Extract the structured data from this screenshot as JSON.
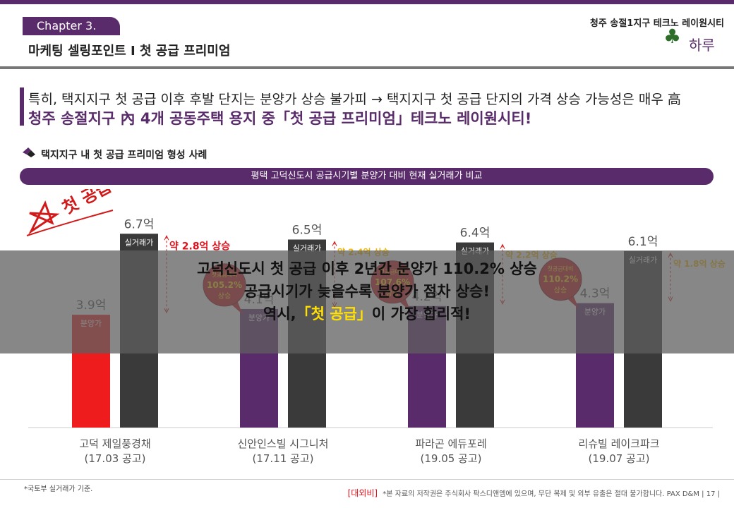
{
  "header": {
    "chapter": "Chapter 3.",
    "section_title": "마케팅 셀링포인트 I 첫 공급 프리미엄",
    "brand_line": "청주 송절1지구 테크노 레이원시티",
    "brand_logo_text": "하루"
  },
  "headline": {
    "line1": "특히, 택지지구 첫 공급 이후 후발 단지는 분양가 상승 불가피 → 택지지구 첫 공급 단지의 가격 상승 가능성은 매우 高",
    "line2": "청주 송절지구 內 4개 공동주택 용지 중「첫 공급 프리미엄」테크노 레이원시티!"
  },
  "subheading": "택지지구 내 첫 공급 프리미엄 형성 사례",
  "chart_title_bar": "평택 고덕신도시 공급시기별 분양가 대비 현재 실거래가 비교",
  "stamp_text": "첫 공급",
  "overlay": {
    "line1": "고덕신도시 첫 공급 이후 2년간 분양가 110.2% 상승",
    "line2": "공급시기가 늦을수록 분양가 점차 상승!",
    "line3_pre": "역시,",
    "line3_highlight": "「첫 공급」",
    "line3_post": "이 가장 합리적!"
  },
  "footnote": "*국토부 실거래가 기준.",
  "footer": {
    "external_tag": "[대외비]",
    "notice": "*본 자료의 저작권은 주식회사 팍스디앤엠에 있으며, 무단 복제 및 외부 유출은 절대 불가합니다.",
    "company": "PAX D&M",
    "page": "| 17 |"
  },
  "colors": {
    "brand_purple": "#5a2b6b",
    "sale_first": "#ee1c1c",
    "sale_other": "#5a2b6b",
    "actual": "#3a3a3a",
    "rise_first": "#e0101a",
    "rise_other": "#f5b800",
    "badge": "#c8101a"
  },
  "chart_data": {
    "type": "bar",
    "title": "평택 고덕신도시 공급시기별 분양가 대비 현재 실거래가 비교",
    "categories": [
      {
        "name": "고덕 제일풍경채",
        "date": "(17.03 공고)"
      },
      {
        "name": "신안인스빌 시그니처",
        "date": "(17.11 공고)"
      },
      {
        "name": "파라곤 에듀포레",
        "date": "(19.05 공고)"
      },
      {
        "name": "리슈빌 레이크파크",
        "date": "(19.07 공고)"
      }
    ],
    "series": [
      {
        "name": "분양가",
        "values": [
          3.9,
          4.1,
          4.2,
          4.3
        ],
        "labels": [
          "3.9억",
          "4.1억",
          "4.2억",
          "4.3억"
        ]
      },
      {
        "name": "실거래가",
        "values": [
          6.7,
          6.5,
          6.4,
          6.1
        ],
        "labels": [
          "6.7억",
          "6.5억",
          "6.4억",
          "6.1억"
        ]
      }
    ],
    "increase_labels": [
      "약 2.8억 상승",
      "약 2.4억 상승",
      "약 2.2억 상승",
      "약 1.8억 상승"
    ],
    "badges": [
      null,
      {
        "top": "첫공급대비",
        "value": "105.2%",
        "bottom": "상승"
      },
      {
        "top": "첫공급대비",
        "value": "107.6%",
        "bottom": "상승"
      },
      {
        "top": "첫공급대비",
        "value": "110.2%",
        "bottom": "상승"
      }
    ],
    "ylim": [
      0,
      7.4
    ]
  }
}
